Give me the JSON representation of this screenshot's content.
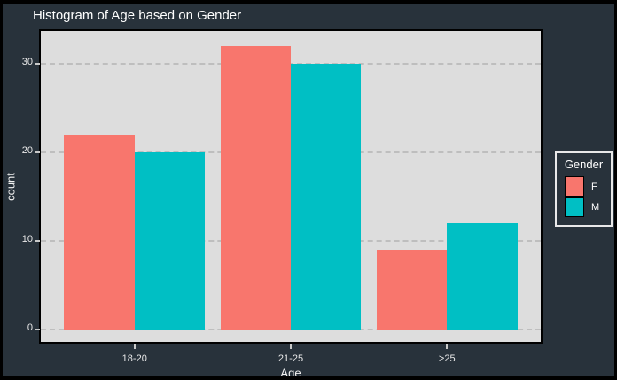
{
  "chart_data": {
    "type": "bar",
    "title": "Histogram of Age based on Gender",
    "xlabel": "Age",
    "ylabel": "count",
    "legend_title": "Gender",
    "legend_position": "right",
    "categories": [
      "18-20",
      "21-25",
      ">25"
    ],
    "series": [
      {
        "name": "F",
        "color": "#F8766D",
        "values": [
          22,
          32,
          9
        ]
      },
      {
        "name": "M",
        "color": "#00BFC4",
        "values": [
          20,
          30,
          12
        ]
      }
    ],
    "x_positions": [
      1,
      2,
      3
    ],
    "xlim": [
      0.4,
      3.6
    ],
    "bar_width": 0.45,
    "y_ticks": [
      0,
      10,
      20,
      30
    ],
    "ylim": [
      -1.4,
      33.7
    ],
    "grid": "horizontal-dashed",
    "colors": {
      "page_bg": "#28323B",
      "frame_border": "#000000",
      "plot_bg": "#DDDDDD",
      "grid": "#BEBEBE",
      "tick": "#C9C9C9",
      "title_text": "#FFFFFF",
      "tick_text": "#E8E8E8"
    }
  }
}
